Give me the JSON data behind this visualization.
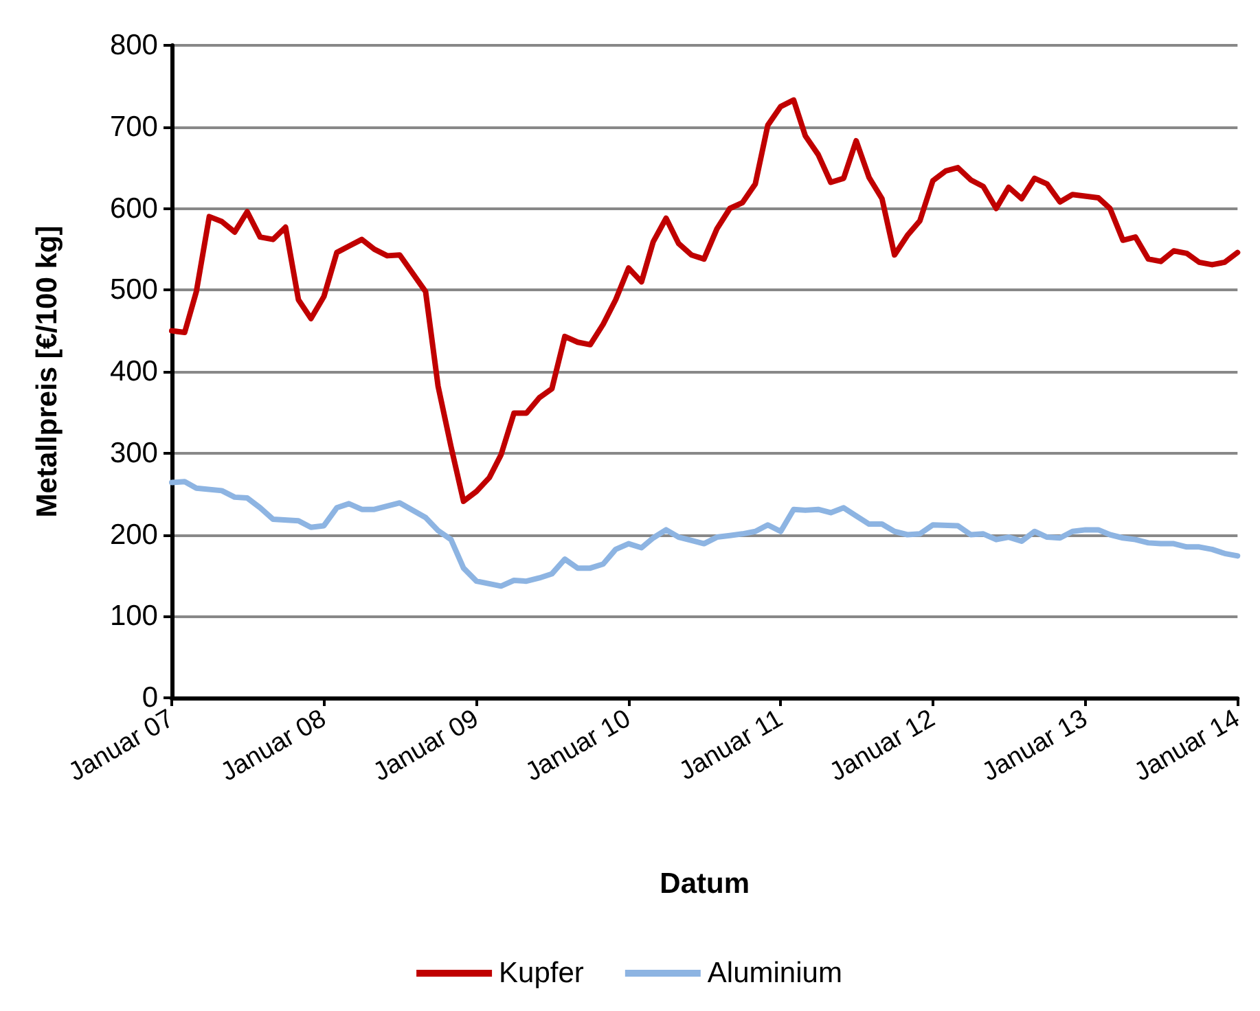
{
  "chart_data": {
    "type": "line",
    "xlabel": "Datum",
    "ylabel": "Metallpreis [€/100 kg]",
    "xlim": [
      "2007-01",
      "2014-01"
    ],
    "xticks": [
      {
        "value": "2007-01",
        "label": "Januar 07"
      },
      {
        "value": "2008-01",
        "label": "Januar 08"
      },
      {
        "value": "2009-01",
        "label": "Januar 09"
      },
      {
        "value": "2010-01",
        "label": "Januar 10"
      },
      {
        "value": "2011-01",
        "label": "Januar 11"
      },
      {
        "value": "2012-01",
        "label": "Januar 12"
      },
      {
        "value": "2013-01",
        "label": "Januar 13"
      },
      {
        "value": "2014-01",
        "label": "Januar 14"
      }
    ],
    "ylim": [
      0,
      800
    ],
    "yticks": [
      0,
      100,
      200,
      300,
      400,
      500,
      600,
      700,
      800
    ],
    "grid": "y",
    "legend": "bottom",
    "marker": "none",
    "line_style": "solid",
    "series": [
      {
        "name": "Kupfer",
        "color": "#c00000",
        "x": [
          "2007-01",
          "2007-02",
          "2007-03",
          "2007-04",
          "2007-05",
          "2007-06",
          "2007-07",
          "2007-08",
          "2007-09",
          "2007-10",
          "2007-11",
          "2007-12",
          "2008-01",
          "2008-02",
          "2008-04",
          "2008-05",
          "2008-06",
          "2008-07",
          "2008-09",
          "2008-10",
          "2008-11",
          "2008-12",
          "2009-01",
          "2009-02",
          "2009-03",
          "2009-04",
          "2009-05",
          "2009-06",
          "2009-07",
          "2009-08",
          "2009-09",
          "2009-10",
          "2009-11",
          "2009-12",
          "2010-01",
          "2010-02",
          "2010-03",
          "2010-04",
          "2010-05",
          "2010-06",
          "2010-07",
          "2010-08",
          "2010-09",
          "2010-10",
          "2010-11",
          "2010-12",
          "2011-01",
          "2011-02",
          "2011-03",
          "2011-04",
          "2011-05",
          "2011-06",
          "2011-07",
          "2011-08",
          "2011-09",
          "2011-10",
          "2011-11",
          "2011-12",
          "2012-01",
          "2012-02",
          "2012-03",
          "2012-04",
          "2012-05",
          "2012-06",
          "2012-07",
          "2012-08",
          "2012-09",
          "2012-10",
          "2012-11",
          "2012-12",
          "2013-02",
          "2013-03",
          "2013-04",
          "2013-05",
          "2013-06",
          "2013-07",
          "2013-08",
          "2013-09",
          "2013-10",
          "2013-11",
          "2013-12",
          "2014-01"
        ],
        "values": [
          450,
          448,
          498,
          590,
          584,
          571,
          596,
          565,
          562,
          577,
          488,
          465,
          492,
          546,
          562,
          550,
          542,
          543,
          498,
          382,
          308,
          241,
          253,
          270,
          298,
          349,
          349,
          368,
          379,
          443,
          436,
          433,
          458,
          488,
          527,
          510,
          559,
          588,
          557,
          543,
          538,
          575,
          600,
          607,
          630,
          702,
          725,
          733,
          689,
          666,
          632,
          637,
          683,
          638,
          612,
          543,
          567,
          585,
          634,
          646,
          650,
          635,
          627,
          600,
          626,
          612,
          637,
          630,
          608,
          617,
          613,
          600,
          561,
          565,
          538,
          535,
          548,
          545,
          534,
          531,
          534,
          546
        ]
      },
      {
        "name": "Aluminium",
        "color": "#8db4e2",
        "x": [
          "2007-01",
          "2007-02",
          "2007-03",
          "2007-05",
          "2007-06",
          "2007-07",
          "2007-08",
          "2007-09",
          "2007-11",
          "2007-12",
          "2008-01",
          "2008-02",
          "2008-03",
          "2008-04",
          "2008-05",
          "2008-07",
          "2008-09",
          "2008-10",
          "2008-11",
          "2008-12",
          "2009-01",
          "2009-03",
          "2009-04",
          "2009-05",
          "2009-06",
          "2009-07",
          "2009-08",
          "2009-09",
          "2009-10",
          "2009-11",
          "2009-12",
          "2010-01",
          "2010-02",
          "2010-03",
          "2010-04",
          "2010-05",
          "2010-06",
          "2010-07",
          "2010-08",
          "2010-09",
          "2010-10",
          "2010-11",
          "2010-12",
          "2011-01",
          "2011-02",
          "2011-03",
          "2011-04",
          "2011-05",
          "2011-06",
          "2011-07",
          "2011-08",
          "2011-09",
          "2011-10",
          "2011-11",
          "2011-12",
          "2012-01",
          "2012-03",
          "2012-04",
          "2012-05",
          "2012-06",
          "2012-07",
          "2012-08",
          "2012-09",
          "2012-10",
          "2012-11",
          "2012-12",
          "2013-01",
          "2013-02",
          "2013-03",
          "2013-04",
          "2013-05",
          "2013-06",
          "2013-07",
          "2013-08",
          "2013-09",
          "2013-10",
          "2013-11",
          "2013-12",
          "2014-01"
        ],
        "values": [
          264,
          265,
          257,
          254,
          246,
          245,
          233,
          219,
          217,
          209,
          211,
          233,
          238,
          231,
          231,
          239,
          221,
          205,
          194,
          159,
          143,
          137,
          144,
          143,
          147,
          152,
          170,
          159,
          159,
          164,
          182,
          189,
          184,
          196,
          206,
          197,
          193,
          189,
          197,
          199,
          201,
          204,
          212,
          204,
          231,
          230,
          231,
          227,
          233,
          223,
          213,
          213,
          204,
          200,
          201,
          212,
          211,
          200,
          201,
          194,
          197,
          192,
          204,
          197,
          196,
          204,
          206,
          206,
          200,
          196,
          194,
          190,
          189,
          189,
          185,
          185,
          182,
          177,
          174
        ]
      }
    ]
  }
}
